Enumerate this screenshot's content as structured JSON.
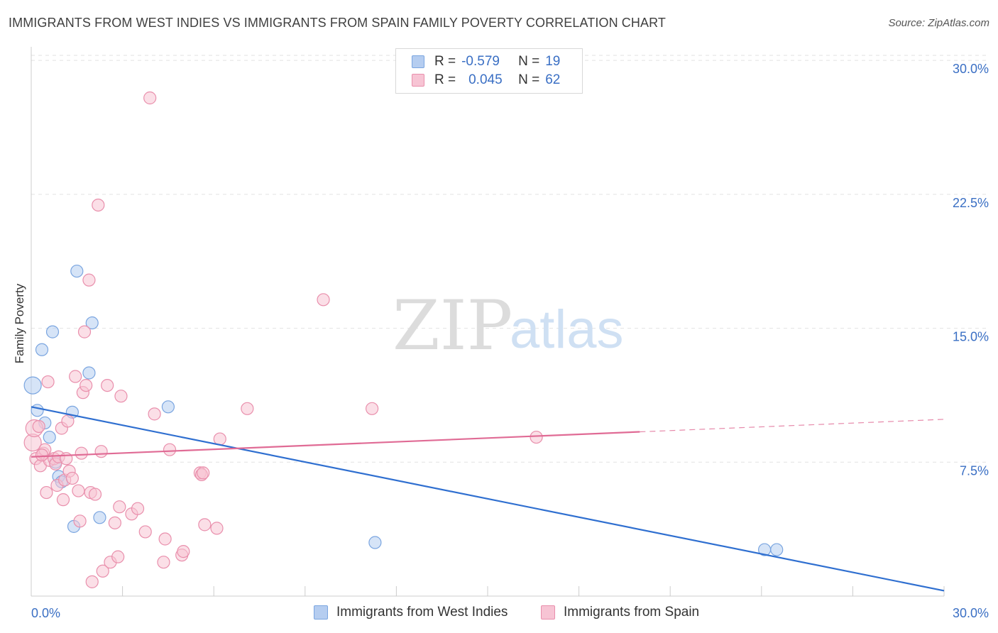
{
  "header": {
    "title": "IMMIGRANTS FROM WEST INDIES VS IMMIGRANTS FROM SPAIN FAMILY POVERTY CORRELATION CHART",
    "source": "Source: ZipAtlas.com"
  },
  "legend": {
    "series1": {
      "r_label": "R =",
      "r_value": "-0.579",
      "n_label": "N =",
      "n_value": "19"
    },
    "series2": {
      "r_label": "R =",
      "r_value": "0.045",
      "n_label": "N =",
      "n_value": "62"
    }
  },
  "watermark": {
    "zip": "ZIP",
    "atlas": "atlas"
  },
  "colors": {
    "blue_fill": "#b5cdf0",
    "blue_stroke": "#7aa5e0",
    "blue_line": "#2f6fd0",
    "pink_fill": "#f7c4d4",
    "pink_stroke": "#e98fac",
    "pink_line": "#e06b95",
    "axis_text": "#3a6fc4",
    "grid": "#e2e2e2"
  },
  "chart_data": {
    "type": "scatter",
    "title": "IMMIGRANTS FROM WEST INDIES VS IMMIGRANTS FROM SPAIN FAMILY POVERTY CORRELATION CHART",
    "xlabel": "",
    "ylabel": "Family Poverty",
    "xlim": [
      0,
      30
    ],
    "ylim": [
      0,
      31
    ],
    "x_tick_labels": [
      "0.0%",
      "30.0%"
    ],
    "y_ticks": [
      7.5,
      15.0,
      22.5,
      30.0
    ],
    "y_tick_labels": [
      "7.5%",
      "15.0%",
      "22.5%",
      "30.0%"
    ],
    "series": [
      {
        "name": "Immigrants from West Indies",
        "color": "blue",
        "points": [
          [
            0.05,
            11.8
          ],
          [
            0.2,
            10.4
          ],
          [
            0.35,
            13.8
          ],
          [
            0.45,
            9.7
          ],
          [
            0.6,
            8.9
          ],
          [
            0.7,
            14.8
          ],
          [
            0.8,
            7.5
          ],
          [
            0.9,
            6.7
          ],
          [
            1.0,
            6.4
          ],
          [
            1.35,
            10.3
          ],
          [
            1.4,
            3.9
          ],
          [
            1.5,
            18.2
          ],
          [
            1.9,
            12.5
          ],
          [
            2.0,
            15.3
          ],
          [
            2.25,
            4.4
          ],
          [
            4.5,
            10.6
          ],
          [
            11.3,
            3.0
          ],
          [
            24.1,
            2.6
          ],
          [
            24.5,
            2.6
          ]
        ],
        "trend": {
          "x0": 0,
          "y0": 10.6,
          "x1": 30,
          "y1": 0.3,
          "dashed_from": null
        }
      },
      {
        "name": "Immigrants from Spain",
        "color": "pink",
        "points": [
          [
            0.05,
            8.6
          ],
          [
            0.1,
            9.4
          ],
          [
            0.15,
            7.7
          ],
          [
            0.25,
            9.5
          ],
          [
            0.3,
            7.3
          ],
          [
            0.4,
            8.0
          ],
          [
            0.45,
            8.2
          ],
          [
            0.5,
            5.8
          ],
          [
            0.55,
            12.0
          ],
          [
            0.6,
            7.6
          ],
          [
            0.75,
            7.7
          ],
          [
            0.8,
            7.4
          ],
          [
            0.85,
            6.2
          ],
          [
            0.9,
            7.8
          ],
          [
            1.0,
            9.4
          ],
          [
            1.05,
            5.4
          ],
          [
            1.1,
            6.5
          ],
          [
            1.15,
            7.7
          ],
          [
            1.2,
            9.8
          ],
          [
            1.25,
            7.0
          ],
          [
            1.35,
            6.6
          ],
          [
            1.45,
            12.3
          ],
          [
            1.55,
            5.9
          ],
          [
            1.6,
            4.2
          ],
          [
            1.65,
            8.0
          ],
          [
            1.7,
            11.4
          ],
          [
            1.75,
            14.8
          ],
          [
            1.8,
            11.8
          ],
          [
            1.9,
            17.7
          ],
          [
            1.95,
            5.8
          ],
          [
            2.0,
            0.8
          ],
          [
            2.1,
            5.7
          ],
          [
            2.2,
            21.9
          ],
          [
            2.3,
            8.1
          ],
          [
            2.35,
            1.4
          ],
          [
            2.5,
            11.8
          ],
          [
            2.6,
            1.9
          ],
          [
            2.75,
            4.1
          ],
          [
            2.85,
            2.2
          ],
          [
            2.9,
            5.0
          ],
          [
            2.95,
            11.2
          ],
          [
            3.3,
            4.6
          ],
          [
            3.5,
            4.9
          ],
          [
            3.75,
            3.6
          ],
          [
            3.9,
            27.9
          ],
          [
            4.05,
            10.2
          ],
          [
            4.35,
            1.9
          ],
          [
            4.4,
            3.2
          ],
          [
            4.55,
            8.2
          ],
          [
            4.95,
            2.3
          ],
          [
            5.0,
            2.5
          ],
          [
            5.55,
            6.9
          ],
          [
            5.6,
            6.8
          ],
          [
            5.65,
            6.9
          ],
          [
            5.7,
            4.0
          ],
          [
            6.1,
            3.8
          ],
          [
            6.2,
            8.8
          ],
          [
            7.1,
            10.5
          ],
          [
            9.6,
            16.6
          ],
          [
            11.2,
            10.5
          ],
          [
            16.6,
            8.9
          ],
          [
            0.35,
            7.9
          ]
        ],
        "trend": {
          "x0": 0,
          "y0": 7.8,
          "x1": 30,
          "y1": 9.9,
          "dashed_from": 20
        }
      }
    ],
    "legend_labels": [
      "Immigrants from West Indies",
      "Immigrants from Spain"
    ]
  }
}
